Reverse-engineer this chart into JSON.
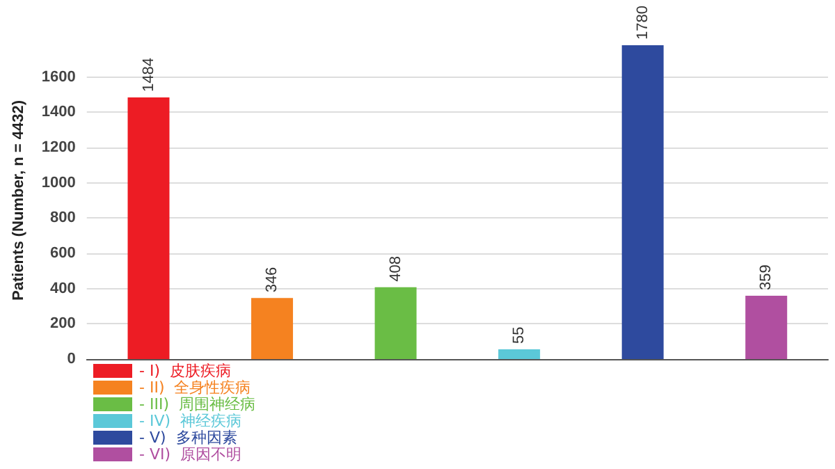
{
  "chart_data": {
    "type": "bar",
    "ylabel": "Patients (Number, n = 4432)",
    "categories": [
      null,
      null,
      null,
      null,
      null,
      null
    ],
    "series": [
      {
        "name": "- I)  皮肤疾病",
        "color": "#ed1c24",
        "values": [
          1484,
          null,
          null,
          null,
          null,
          null
        ]
      },
      {
        "name": "- II)  全身性疾病",
        "color": "#f58220",
        "values": [
          null,
          346,
          null,
          null,
          null,
          null
        ]
      },
      {
        "name": "- III)  周围神经病",
        "color": "#6abd45",
        "values": [
          null,
          null,
          408,
          null,
          null,
          null
        ]
      },
      {
        "name": "- IV)  神经疾病",
        "color": "#5bc8d8",
        "values": [
          null,
          null,
          null,
          55,
          null,
          null
        ]
      },
      {
        "name": "- V)  多种因素",
        "color": "#2e4a9e",
        "values": [
          null,
          null,
          null,
          null,
          1780,
          null
        ]
      },
      {
        "name": "- VI)  原因不明",
        "color": "#b04fa0",
        "values": [
          null,
          null,
          null,
          null,
          null,
          359
        ]
      }
    ],
    "stacked": true,
    "ylim": [
      0,
      1800
    ],
    "yticks": [
      0,
      200,
      400,
      600,
      800,
      1000,
      1200,
      1400,
      1600
    ],
    "grid": "y",
    "legend": "bottom left",
    "data_labels": true
  }
}
